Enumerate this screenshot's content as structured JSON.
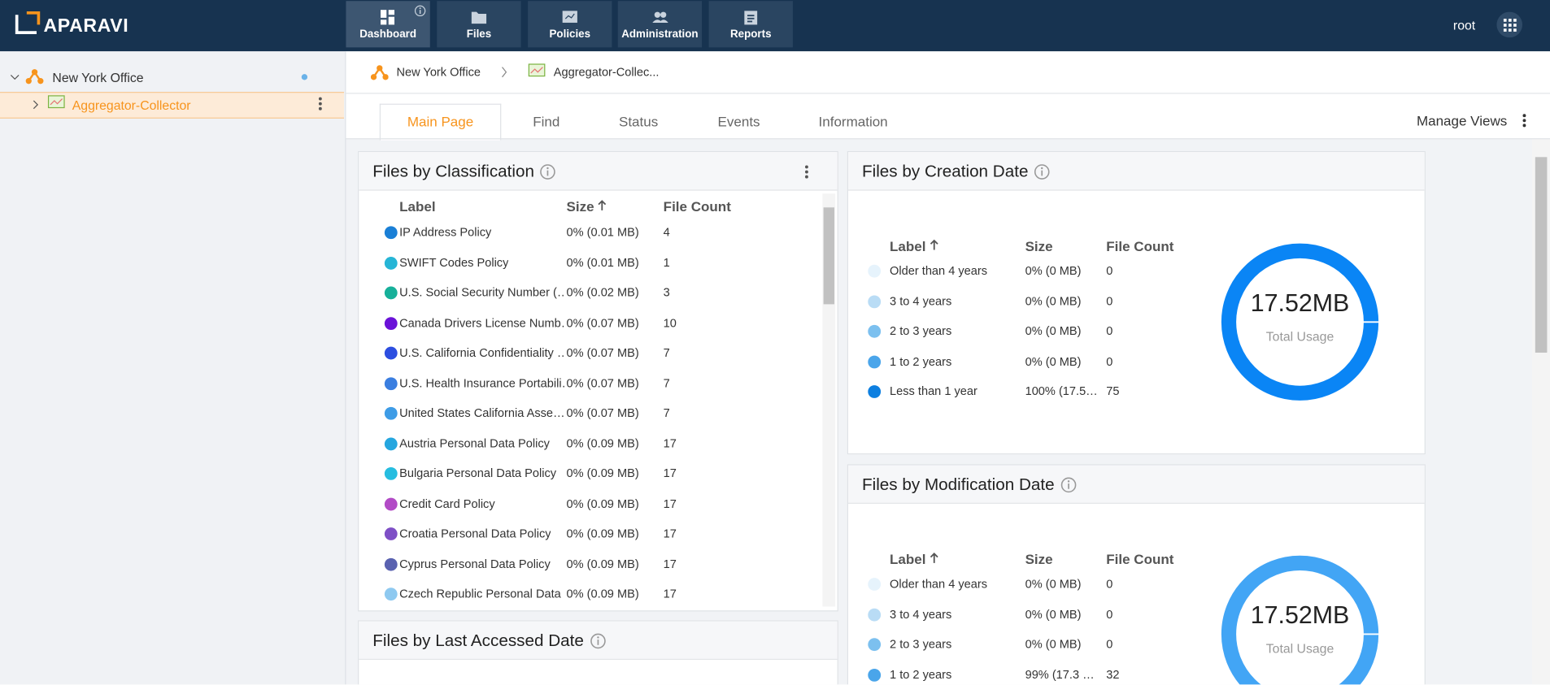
{
  "header": {
    "logo": "APARAVI",
    "nav": [
      "Dashboard",
      "Files",
      "Policies",
      "Administration",
      "Reports"
    ],
    "user": "root"
  },
  "sidebar": {
    "tree": [
      "New York Office",
      "Aggregator-Collector"
    ]
  },
  "breadcrumb": [
    "New York Office",
    "Aggregator-Collec..."
  ],
  "tabs": [
    "Main Page",
    "Find",
    "Status",
    "Events",
    "Information"
  ],
  "manage_views": "Manage Views",
  "widgets": [
    {
      "title": "Files by Classification",
      "columns": [
        "Label",
        "Size",
        "File Count"
      ],
      "rows": [
        {
          "label": "IP Address Policy",
          "size": "0% (0.01 MB)",
          "count": 4,
          "color": "#1a7fd6"
        },
        {
          "label": "SWIFT Codes Policy",
          "size": "0% (0.01 MB)",
          "count": 1,
          "color": "#26b5d6"
        },
        {
          "label": "U.S. Social Security Number (…",
          "size": "0% (0.02 MB)",
          "count": 3,
          "color": "#17b09a"
        },
        {
          "label": "Canada Drivers License Numb…",
          "size": "0% (0.07 MB)",
          "count": 10,
          "color": "#6a12d8"
        },
        {
          "label": "U.S. California Confidentiality …",
          "size": "0% (0.07 MB)",
          "count": 7,
          "color": "#2c4ee0"
        },
        {
          "label": "U.S. Health Insurance Portabili…",
          "size": "0% (0.07 MB)",
          "count": 7,
          "color": "#3a7ee0"
        },
        {
          "label": "United States California Asse…",
          "size": "0% (0.07 MB)",
          "count": 7,
          "color": "#3e9ce6"
        },
        {
          "label": "Austria Personal Data Policy",
          "size": "0% (0.09 MB)",
          "count": 17,
          "color": "#25a6df"
        },
        {
          "label": "Bulgaria Personal Data Policy",
          "size": "0% (0.09 MB)",
          "count": 17,
          "color": "#26bde0"
        },
        {
          "label": "Credit Card Policy",
          "size": "0% (0.09 MB)",
          "count": 17,
          "color": "#b24bc6"
        },
        {
          "label": "Croatia Personal Data Policy",
          "size": "0% (0.09 MB)",
          "count": 17,
          "color": "#7e4fc6"
        },
        {
          "label": "Cyprus Personal Data Policy",
          "size": "0% (0.09 MB)",
          "count": 17,
          "color": "#5a62b0"
        },
        {
          "label": "Czech Republic Personal Data …",
          "size": "0% (0.09 MB)",
          "count": 17,
          "color": "#8ec9f0"
        }
      ]
    },
    {
      "title": "Files by Creation Date",
      "columns": [
        "Label",
        "Size",
        "File Count"
      ],
      "total": "17.52MB",
      "total_label": "Total Usage",
      "donut_color": "#0a85f5",
      "rows": [
        {
          "label": "Older than 4 years",
          "size": "0% (0 MB)",
          "count": 0,
          "color": "#e6f3fc"
        },
        {
          "label": "3 to 4 years",
          "size": "0% (0 MB)",
          "count": 0,
          "color": "#b9dcf5"
        },
        {
          "label": "2 to 3 years",
          "size": "0% (0 MB)",
          "count": 0,
          "color": "#7cc0ef"
        },
        {
          "label": "1 to 2 years",
          "size": "0% (0 MB)",
          "count": 0,
          "color": "#4aa5ea"
        },
        {
          "label": "Less than 1 year",
          "size": "100% (17.5…",
          "count": 75,
          "color": "#0d7fe0"
        }
      ]
    },
    {
      "title": "Files by Modification Date",
      "columns": [
        "Label",
        "Size",
        "File Count"
      ],
      "total": "17.52MB",
      "total_label": "Total Usage",
      "donut_color": "#42a5f5",
      "rows": [
        {
          "label": "Older than 4 years",
          "size": "0% (0 MB)",
          "count": 0,
          "color": "#e6f3fc"
        },
        {
          "label": "3 to 4 years",
          "size": "0% (0 MB)",
          "count": 0,
          "color": "#b9dcf5"
        },
        {
          "label": "2 to 3 years",
          "size": "0% (0 MB)",
          "count": 0,
          "color": "#7cc0ef"
        },
        {
          "label": "1 to 2 years",
          "size": "99% (17.3 …",
          "count": 32,
          "color": "#4aa5ea"
        }
      ]
    },
    {
      "title": "Files by Last Accessed Date"
    }
  ]
}
